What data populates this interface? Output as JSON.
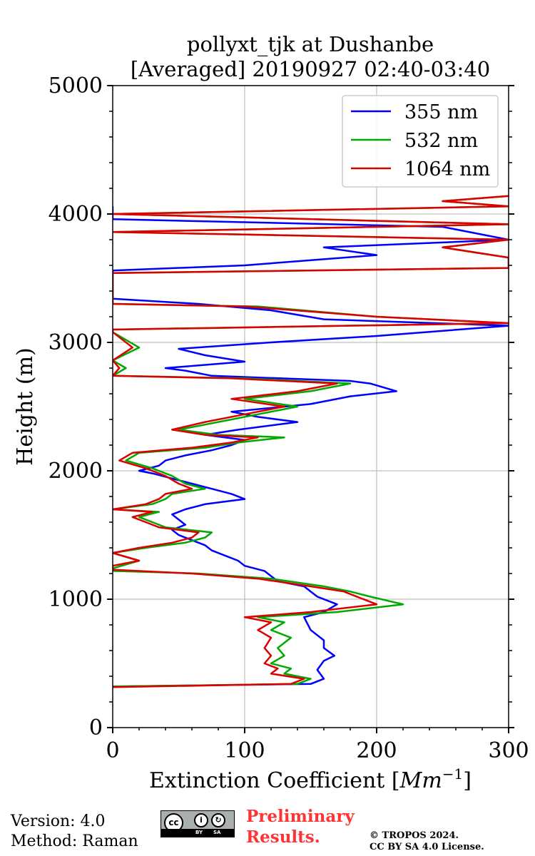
{
  "chart_data": {
    "type": "line",
    "title": [
      "pollyxt_tjk at Dushanbe",
      "[Averaged] 20190927 02:40-03:40"
    ],
    "xlabel": "Extinction Coefficient [$Mm^{-1}$]",
    "xlabel_text": "Extinction Coefficient [",
    "xlabel_unit": "Mm",
    "xlabel_exp": "−1",
    "xlabel_end": "]",
    "ylabel": "Height (m)",
    "xlim": [
      0,
      300
    ],
    "ylim": [
      0,
      5000
    ],
    "xticks": [
      0,
      100,
      200,
      300
    ],
    "xtick_labels": [
      "0",
      "100",
      "200",
      "300"
    ],
    "yticks": [
      0,
      1000,
      2000,
      3000,
      4000,
      5000
    ],
    "ytick_labels": [
      "0",
      "1000",
      "2000",
      "3000",
      "4000",
      "5000"
    ],
    "grid": true,
    "legend_position": "top-right",
    "series": [
      {
        "name": "355 nm",
        "color": "#0000ff",
        "points": [
          [
            0,
            320
          ],
          [
            150,
            340
          ],
          [
            160,
            380
          ],
          [
            155,
            450
          ],
          [
            160,
            520
          ],
          [
            168,
            560
          ],
          [
            160,
            620
          ],
          [
            160,
            680
          ],
          [
            150,
            760
          ],
          [
            145,
            860
          ],
          [
            160,
            900
          ],
          [
            170,
            960
          ],
          [
            155,
            1020
          ],
          [
            150,
            1060
          ],
          [
            145,
            1100
          ],
          [
            125,
            1140
          ],
          [
            120,
            1180
          ],
          [
            115,
            1220
          ],
          [
            100,
            1260
          ],
          [
            95,
            1300
          ],
          [
            85,
            1340
          ],
          [
            75,
            1380
          ],
          [
            70,
            1420
          ],
          [
            60,
            1460
          ],
          [
            50,
            1500
          ],
          [
            45,
            1540
          ],
          [
            55,
            1580
          ],
          [
            50,
            1620
          ],
          [
            45,
            1660
          ],
          [
            55,
            1700
          ],
          [
            70,
            1740
          ],
          [
            100,
            1780
          ],
          [
            90,
            1820
          ],
          [
            75,
            1860
          ],
          [
            60,
            1900
          ],
          [
            45,
            1940
          ],
          [
            30,
            1980
          ],
          [
            20,
            2000
          ],
          [
            35,
            2040
          ],
          [
            40,
            2080
          ],
          [
            55,
            2120
          ],
          [
            75,
            2160
          ],
          [
            90,
            2200
          ],
          [
            100,
            2240
          ],
          [
            70,
            2280
          ],
          [
            95,
            2320
          ],
          [
            140,
            2380
          ],
          [
            110,
            2420
          ],
          [
            90,
            2460
          ],
          [
            150,
            2520
          ],
          [
            180,
            2580
          ],
          [
            215,
            2620
          ],
          [
            195,
            2680
          ],
          [
            180,
            2700
          ],
          [
            75,
            2740
          ],
          [
            55,
            2780
          ],
          [
            40,
            2800
          ],
          [
            100,
            2850
          ],
          [
            70,
            2900
          ],
          [
            50,
            2950
          ],
          [
            120,
            3000
          ],
          [
            200,
            3050
          ],
          [
            300,
            3130
          ],
          [
            160,
            3180
          ],
          [
            120,
            3250
          ],
          [
            65,
            3300
          ],
          [
            0,
            3340
          ],
          [
            0,
            3420
          ],
          [
            0,
            3560
          ],
          [
            100,
            3600
          ],
          [
            200,
            3680
          ],
          [
            160,
            3740
          ],
          [
            300,
            3800
          ],
          [
            250,
            3900
          ],
          [
            0,
            3960
          ],
          [
            0,
            4060
          ]
        ]
      },
      {
        "name": "532 nm",
        "color": "#00aa00",
        "points": [
          [
            0,
            320
          ],
          [
            140,
            340
          ],
          [
            150,
            380
          ],
          [
            130,
            420
          ],
          [
            135,
            460
          ],
          [
            120,
            500
          ],
          [
            130,
            560
          ],
          [
            125,
            620
          ],
          [
            135,
            700
          ],
          [
            120,
            760
          ],
          [
            130,
            820
          ],
          [
            110,
            860
          ],
          [
            170,
            900
          ],
          [
            220,
            960
          ],
          [
            195,
            1020
          ],
          [
            180,
            1060
          ],
          [
            160,
            1100
          ],
          [
            120,
            1160
          ],
          [
            65,
            1200
          ],
          [
            0,
            1220
          ],
          [
            0,
            1240
          ],
          [
            20,
            1300
          ],
          [
            0,
            1360
          ],
          [
            25,
            1400
          ],
          [
            55,
            1440
          ],
          [
            70,
            1480
          ],
          [
            75,
            1520
          ],
          [
            40,
            1560
          ],
          [
            30,
            1600
          ],
          [
            20,
            1640
          ],
          [
            35,
            1680
          ],
          [
            0,
            1700
          ],
          [
            30,
            1740
          ],
          [
            40,
            1780
          ],
          [
            45,
            1820
          ],
          [
            70,
            1860
          ],
          [
            55,
            1900
          ],
          [
            45,
            1960
          ],
          [
            30,
            2020
          ],
          [
            10,
            2080
          ],
          [
            20,
            2140
          ],
          [
            70,
            2180
          ],
          [
            95,
            2220
          ],
          [
            130,
            2260
          ],
          [
            80,
            2280
          ],
          [
            50,
            2320
          ],
          [
            80,
            2380
          ],
          [
            110,
            2440
          ],
          [
            140,
            2500
          ],
          [
            100,
            2560
          ],
          [
            150,
            2620
          ],
          [
            180,
            2680
          ],
          [
            100,
            2720
          ],
          [
            0,
            2740
          ],
          [
            10,
            2800
          ],
          [
            0,
            2860
          ],
          [
            20,
            2960
          ],
          [
            0,
            3080
          ],
          [
            0,
            3100
          ],
          [
            300,
            3150
          ],
          [
            200,
            3200
          ],
          [
            110,
            3280
          ],
          [
            0,
            3300
          ],
          [
            0,
            3540
          ],
          [
            300,
            3580
          ],
          [
            300,
            3660
          ],
          [
            250,
            3740
          ],
          [
            300,
            3800
          ],
          [
            0,
            3860
          ],
          [
            300,
            3920
          ],
          [
            0,
            4000
          ],
          [
            300,
            4060
          ],
          [
            250,
            4100
          ],
          [
            300,
            4140
          ]
        ]
      },
      {
        "name": "1064 nm",
        "color": "#dd0000",
        "points": [
          [
            0,
            315
          ],
          [
            135,
            340
          ],
          [
            145,
            380
          ],
          [
            120,
            420
          ],
          [
            125,
            460
          ],
          [
            115,
            500
          ],
          [
            120,
            560
          ],
          [
            115,
            620
          ],
          [
            120,
            700
          ],
          [
            110,
            760
          ],
          [
            120,
            820
          ],
          [
            100,
            860
          ],
          [
            150,
            900
          ],
          [
            200,
            960
          ],
          [
            185,
            1020
          ],
          [
            175,
            1060
          ],
          [
            150,
            1100
          ],
          [
            110,
            1160
          ],
          [
            60,
            1200
          ],
          [
            0,
            1230
          ],
          [
            0,
            1260
          ],
          [
            20,
            1300
          ],
          [
            0,
            1360
          ],
          [
            20,
            1400
          ],
          [
            45,
            1440
          ],
          [
            60,
            1480
          ],
          [
            65,
            1520
          ],
          [
            35,
            1560
          ],
          [
            25,
            1600
          ],
          [
            15,
            1640
          ],
          [
            30,
            1680
          ],
          [
            0,
            1700
          ],
          [
            25,
            1740
          ],
          [
            35,
            1780
          ],
          [
            40,
            1820
          ],
          [
            60,
            1860
          ],
          [
            50,
            1900
          ],
          [
            40,
            1960
          ],
          [
            25,
            2020
          ],
          [
            5,
            2080
          ],
          [
            15,
            2140
          ],
          [
            60,
            2180
          ],
          [
            90,
            2220
          ],
          [
            110,
            2260
          ],
          [
            70,
            2280
          ],
          [
            45,
            2320
          ],
          [
            70,
            2380
          ],
          [
            100,
            2440
          ],
          [
            130,
            2500
          ],
          [
            90,
            2560
          ],
          [
            140,
            2620
          ],
          [
            170,
            2680
          ],
          [
            90,
            2720
          ],
          [
            0,
            2740
          ],
          [
            5,
            2800
          ],
          [
            0,
            2860
          ],
          [
            15,
            2960
          ],
          [
            0,
            3080
          ],
          [
            0,
            3100
          ],
          [
            300,
            3150
          ],
          [
            200,
            3200
          ],
          [
            100,
            3280
          ],
          [
            0,
            3300
          ],
          [
            0,
            3540
          ],
          [
            300,
            3580
          ],
          [
            300,
            3660
          ],
          [
            250,
            3740
          ],
          [
            300,
            3800
          ],
          [
            0,
            3860
          ],
          [
            300,
            3920
          ],
          [
            0,
            4000
          ],
          [
            300,
            4060
          ],
          [
            250,
            4100
          ],
          [
            300,
            4140
          ]
        ]
      }
    ]
  },
  "footer": {
    "version": "Version: 4.0",
    "method": "Method: Raman",
    "license_badge": {
      "label": "cc",
      "left": "BY",
      "right": "SA"
    },
    "preliminary_line1": "Preliminary",
    "preliminary_line2": "Results.",
    "copyright_line1": "© TROPOS 2024.",
    "copyright_line2": "CC BY SA 4.0 License."
  }
}
